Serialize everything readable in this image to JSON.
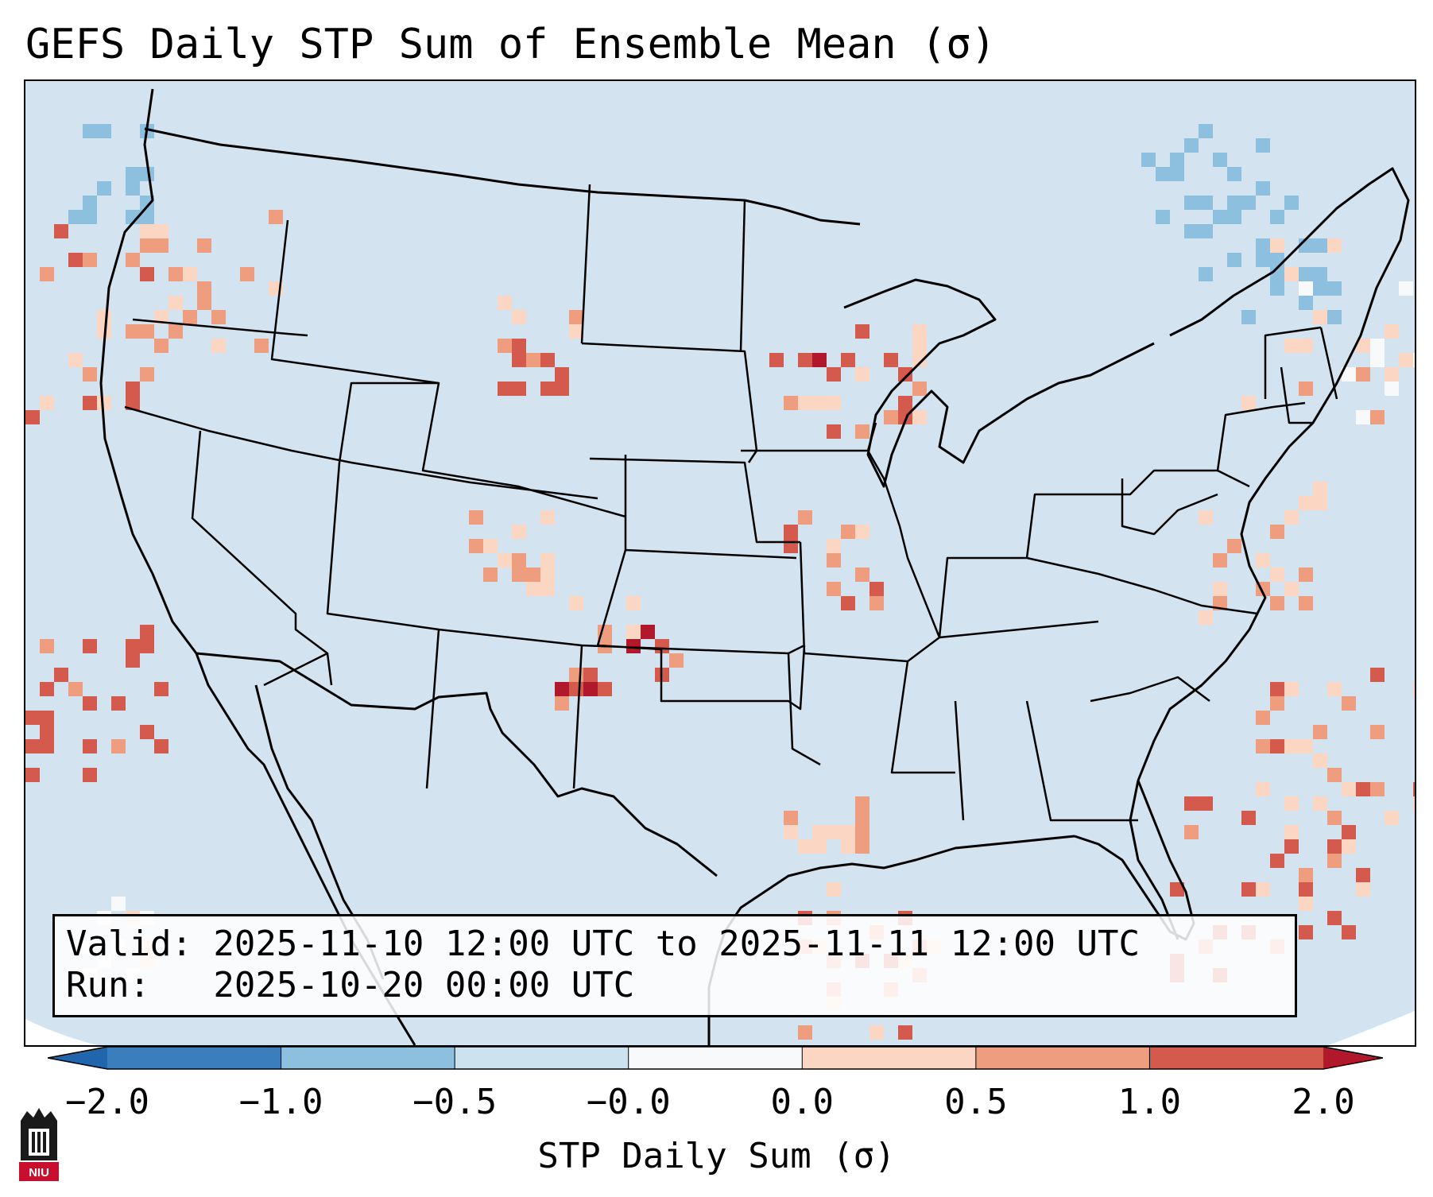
{
  "title": "GEFS Daily STP Sum of Ensemble Mean (σ)",
  "map": {
    "region": "Contiguous United States",
    "background_color": "#d3e4f0",
    "outline_color": "#000000"
  },
  "info_box": {
    "valid_line": "Valid: 2025-11-10 12:00 UTC to 2025-11-11 12:00 UTC",
    "run_line": "Run:   2025-10-20 00:00 UTC"
  },
  "colorbar": {
    "label": "STP Daily Sum (σ)",
    "ticks": [
      "−2.0",
      "−1.0",
      "−0.5",
      "−0.0",
      "0.0",
      "0.5",
      "1.0",
      "2.0"
    ],
    "bin_colors": [
      "#3a7ebd",
      "#8dbfde",
      "#cde2ef",
      "#f8f9fa",
      "#fbd6c2",
      "#ee9d7f",
      "#d35a4c"
    ],
    "under_color": "#2166ac",
    "over_color": "#b2182b"
  },
  "logo": {
    "name": "NIU",
    "text": "NIU"
  }
}
